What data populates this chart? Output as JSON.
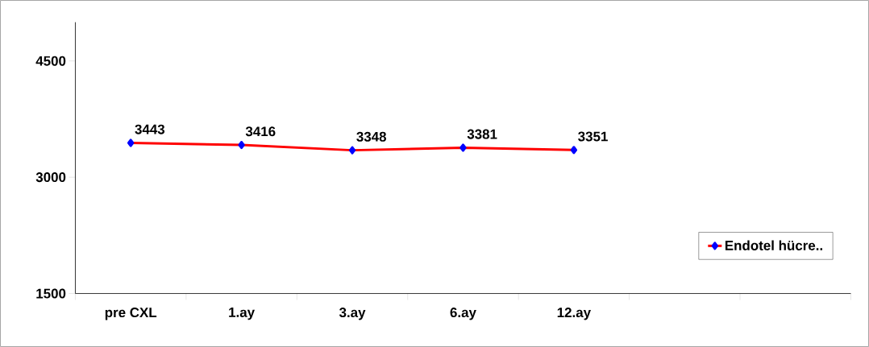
{
  "chart_data": {
    "type": "line",
    "categories": [
      "pre CXL",
      "1.ay",
      "3.ay",
      "6.ay",
      "12.ay",
      null,
      null
    ],
    "series": [
      {
        "name": "Endotel hücre..",
        "color": "#ff0000",
        "values": [
          3443,
          3416,
          3348,
          3381,
          3351,
          null,
          null
        ]
      }
    ],
    "ylim": [
      1500,
      5000
    ],
    "yticks": [
      1500,
      3000,
      4500
    ],
    "grid": false,
    "legend": "bottom right",
    "marker": "diamond",
    "line_style": "solid",
    "data_labels": true
  }
}
